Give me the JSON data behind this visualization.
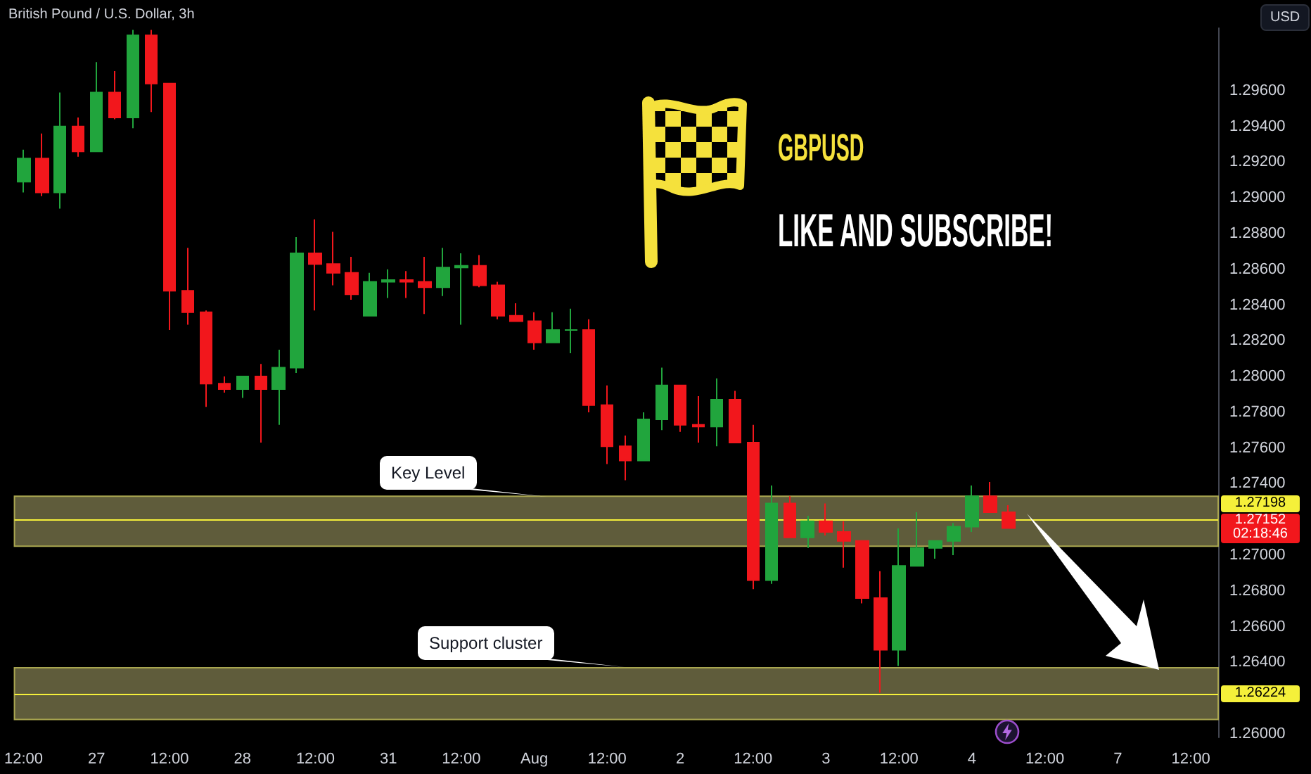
{
  "chart_data": {
    "type": "candlestick",
    "title": "British Pound / U.S. Dollar, 3h",
    "subtitle": "GBPUSD",
    "ylabel": "USD",
    "categories": [
      "12:00",
      null,
      null,
      null,
      "27",
      null,
      null,
      null,
      "12:00",
      null,
      null,
      null,
      "28",
      null,
      null,
      null,
      "12:00",
      null,
      null,
      null,
      "31",
      null,
      null,
      null,
      "12:00",
      null,
      null,
      null,
      "Aug",
      null,
      null,
      null,
      "12:00",
      null,
      null,
      null,
      "2",
      null,
      null,
      null,
      "12:00",
      null,
      null,
      null,
      "3",
      null,
      null,
      null,
      "12:00",
      null,
      null,
      null,
      "4",
      null,
      null,
      null,
      "12:00",
      null,
      null,
      null,
      "7",
      null,
      null,
      null,
      "12:00",
      null
    ],
    "ohlc": [
      [
        1.2909,
        1.2927,
        1.2903,
        1.2922
      ],
      [
        1.2922,
        1.2936,
        1.2901,
        1.2903
      ],
      [
        1.2903,
        1.2959,
        1.2894,
        1.294
      ],
      [
        1.294,
        1.2945,
        1.2923,
        1.2926
      ],
      [
        1.2926,
        1.2976,
        1.2926,
        1.2959
      ],
      [
        1.2959,
        1.2971,
        1.2944,
        1.2945
      ],
      [
        1.2945,
        1.2994,
        1.2939,
        1.2991
      ],
      [
        1.2991,
        1.2994,
        1.2948,
        1.2964
      ],
      [
        1.2964,
        1.2964,
        1.2826,
        1.2848
      ],
      [
        1.2848,
        1.2872,
        1.2829,
        1.2836
      ],
      [
        1.2836,
        1.2837,
        1.2783,
        1.2796
      ],
      [
        1.2796,
        1.28,
        1.2791,
        1.2793
      ],
      [
        1.2793,
        1.28,
        1.2788,
        1.28
      ],
      [
        1.28,
        1.2807,
        1.2763,
        1.2793
      ],
      [
        1.2793,
        1.2815,
        1.2773,
        1.2805
      ],
      [
        1.2805,
        1.2878,
        1.2802,
        1.2869
      ],
      [
        1.2869,
        1.2888,
        1.2837,
        1.2863
      ],
      [
        1.2863,
        1.2881,
        1.2851,
        1.2858
      ],
      [
        1.2858,
        1.2867,
        1.2843,
        1.2846
      ],
      [
        1.2834,
        1.2858,
        1.2834,
        1.2853
      ],
      [
        1.2853,
        1.286,
        1.2844,
        1.2854
      ],
      [
        1.2854,
        1.2859,
        1.2844,
        1.2853
      ],
      [
        1.2853,
        1.2867,
        1.2835,
        1.285
      ],
      [
        1.285,
        1.2872,
        1.2845,
        1.2861
      ],
      [
        1.2861,
        1.2869,
        1.2829,
        1.2862
      ],
      [
        1.2862,
        1.2868,
        1.285,
        1.2851
      ],
      [
        1.2851,
        1.2853,
        1.2832,
        1.2834
      ],
      [
        1.2834,
        1.2841,
        1.2831,
        1.2831
      ],
      [
        1.2831,
        1.2836,
        1.2815,
        1.2819
      ],
      [
        1.2819,
        1.2836,
        1.2819,
        1.2826
      ],
      [
        1.2826,
        1.2838,
        1.2813,
        1.2826
      ],
      [
        1.2826,
        1.2832,
        1.278,
        1.2784
      ],
      [
        1.2784,
        1.2795,
        1.2751,
        1.2761
      ],
      [
        1.2761,
        1.2767,
        1.2742,
        1.2753
      ],
      [
        1.2753,
        1.278,
        1.2753,
        1.2776
      ],
      [
        1.2776,
        1.2805,
        1.277,
        1.2795
      ],
      [
        1.2795,
        1.2795,
        1.2769,
        1.2773
      ],
      [
        1.2773,
        1.2789,
        1.2763,
        1.2772
      ],
      [
        1.2772,
        1.2799,
        1.2761,
        1.2787
      ],
      [
        1.2787,
        1.2792,
        1.2763,
        1.2763
      ],
      [
        1.2763,
        1.2773,
        1.2681,
        1.2686
      ],
      [
        1.2686,
        1.2739,
        1.2684,
        1.2729
      ],
      [
        1.2729,
        1.2733,
        1.271,
        1.271
      ],
      [
        1.271,
        1.2722,
        1.2704,
        1.2719
      ],
      [
        1.2719,
        1.2729,
        1.2711,
        1.2713
      ],
      [
        1.2713,
        1.2719,
        1.2693,
        1.2708
      ],
      [
        1.2708,
        1.2708,
        1.2673,
        1.2676
      ],
      [
        1.2676,
        1.2691,
        1.2623,
        1.2647
      ],
      [
        1.2647,
        1.2715,
        1.2638,
        1.2694
      ],
      [
        1.2694,
        1.2724,
        1.2694,
        1.2704
      ],
      [
        1.2704,
        1.2708,
        1.2698,
        1.2708
      ],
      [
        1.2708,
        1.2718,
        1.27,
        1.2716
      ],
      [
        1.2716,
        1.2739,
        1.2713,
        1.2733
      ],
      [
        1.2733,
        1.2741,
        1.2724,
        1.2724
      ],
      [
        1.2724,
        1.2728,
        1.27152,
        1.27152
      ],
      null,
      null,
      null,
      null,
      null,
      null,
      null,
      null,
      null,
      null,
      null
    ],
    "colors": [
      "#21a53d",
      "#f2171c",
      "#21a53d",
      "#f2171c",
      "#21a53d",
      "#f2171c",
      "#21a53d",
      "#f2171c",
      "#f2171c",
      "#f2171c",
      "#f2171c",
      "#f2171c",
      "#21a53d",
      "#f2171c",
      "#21a53d",
      "#21a53d",
      "#f2171c",
      "#f2171c",
      "#f2171c",
      "#21a53d",
      "#21a53d",
      "#f2171c",
      "#f2171c",
      "#21a53d",
      "#21a53d",
      "#f2171c",
      "#f2171c",
      "#f2171c",
      "#f2171c",
      "#21a53d",
      "#21a53d",
      "#f2171c",
      "#f2171c",
      "#f2171c",
      "#21a53d",
      "#21a53d",
      "#f2171c",
      "#f2171c",
      "#21a53d",
      "#f2171c",
      "#f2171c",
      "#21a53d",
      "#f2171c",
      "#21a53d",
      "#f2171c",
      "#f2171c",
      "#f2171c",
      "#f2171c",
      "#21a53d",
      "#21a53d",
      "#21a53d",
      "#21a53d",
      "#21a53d",
      "#f2171c",
      "#f2171c",
      null,
      null,
      null,
      null,
      null,
      null,
      null,
      null,
      null,
      null,
      null
    ],
    "ylim": [
      1.2598,
      1.2995
    ],
    "yticks": [
      {
        "value": 1.296,
        "label": "1.29600"
      },
      {
        "value": 1.294,
        "label": "1.29400"
      },
      {
        "value": 1.292,
        "label": "1.29200"
      },
      {
        "value": 1.29,
        "label": "1.29000"
      },
      {
        "value": 1.288,
        "label": "1.28800"
      },
      {
        "value": 1.286,
        "label": "1.28600"
      },
      {
        "value": 1.284,
        "label": "1.28400"
      },
      {
        "value": 1.282,
        "label": "1.28200"
      },
      {
        "value": 1.28,
        "label": "1.28000"
      },
      {
        "value": 1.278,
        "label": "1.27800"
      },
      {
        "value": 1.276,
        "label": "1.27600"
      },
      {
        "value": 1.274,
        "label": "1.27400"
      },
      {
        "value": 1.27,
        "label": "1.27000"
      },
      {
        "value": 1.268,
        "label": "1.26800"
      },
      {
        "value": 1.266,
        "label": "1.26600"
      },
      {
        "value": 1.264,
        "label": "1.26400"
      },
      {
        "value": 1.26,
        "label": "1.26000"
      }
    ],
    "ref_lines": [
      {
        "axis": "y",
        "value": 1.27198,
        "label": "1.27198",
        "color": "#f5f03a"
      },
      {
        "axis": "y",
        "value": 1.26224,
        "label": "1.26224",
        "color": "#f5f03a"
      }
    ],
    "bands": [
      {
        "axis": "y",
        "from": 1.2705,
        "to": 1.2733,
        "label": "Key Level",
        "color": "#5f5c3b"
      },
      {
        "axis": "y",
        "from": 1.2608,
        "to": 1.2637,
        "label": "Support cluster",
        "color": "#5f5c3b"
      }
    ],
    "annotations": [
      "LIKE AND SUBSCRIBE!",
      "1.27152",
      "02:18:46"
    ]
  }
}
